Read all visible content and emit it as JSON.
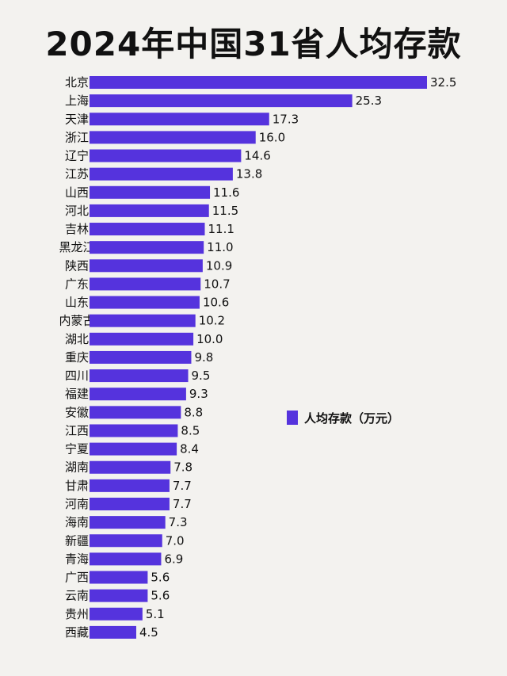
{
  "chart_data": {
    "type": "bar",
    "orientation": "horizontal",
    "title": "2024年中国31省人均存款",
    "categories": [
      "北京",
      "上海",
      "天津",
      "浙江",
      "辽宁",
      "江苏",
      "山西",
      "河北",
      "吉林",
      "黑龙江",
      "陕西",
      "广东",
      "山东",
      "内蒙古",
      "湖北",
      "重庆",
      "四川",
      "福建",
      "安徽",
      "江西",
      "宁夏",
      "湖南",
      "甘肃",
      "河南",
      "海南",
      "新疆",
      "青海",
      "广西",
      "云南",
      "贵州",
      "西藏"
    ],
    "value_labels": [
      "32.5",
      "25.3",
      "17.3",
      "16.0",
      "14.6",
      "13.8",
      "11.6",
      "11.5",
      "11.1",
      "11.0",
      "10.9",
      "10.7",
      "10.6",
      "10.2",
      "10.0",
      "9.8",
      "9.5",
      "9.3",
      "8.8",
      "8.5",
      "8.4",
      "7.8",
      "7.7",
      "7.7",
      "7.3",
      "7.0",
      "6.9",
      "5.6",
      "5.6",
      "5.1",
      "4.5"
    ],
    "series": [
      {
        "name": "人均存款（万元）",
        "color": "#5533dd",
        "values": [
          32.5,
          25.3,
          17.3,
          16.0,
          14.6,
          13.8,
          11.6,
          11.5,
          11.1,
          11.0,
          10.9,
          10.7,
          10.6,
          10.2,
          10.0,
          9.8,
          9.5,
          9.3,
          8.8,
          8.5,
          8.4,
          7.8,
          7.7,
          7.7,
          7.3,
          7.0,
          6.9,
          5.6,
          5.6,
          5.1,
          4.5
        ]
      }
    ],
    "xlim": [
      0,
      32.5
    ],
    "grid": false,
    "legend": "right"
  }
}
